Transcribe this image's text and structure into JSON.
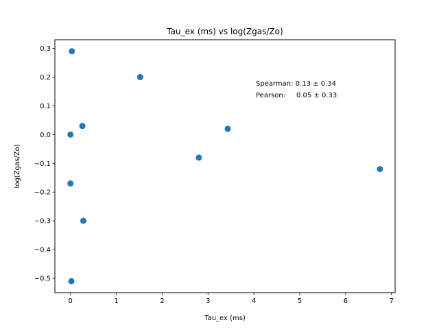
{
  "chart_data": {
    "type": "scatter",
    "title": "Tau_ex (ms) vs log(Zgas/Zo)",
    "xlabel": "Tau_ex (ms)",
    "ylabel": "log(Zgas/Zo)",
    "xlim": [
      -0.34,
      7.08
    ],
    "ylim": [
      -0.55,
      0.33
    ],
    "x_ticks": [
      0,
      1,
      2,
      3,
      4,
      5,
      6,
      7
    ],
    "y_ticks": [
      -0.5,
      -0.4,
      -0.3,
      -0.2,
      -0.1,
      0.0,
      0.1,
      0.2,
      0.3
    ],
    "x_tick_labels": [
      "0",
      "1",
      "2",
      "3",
      "4",
      "5",
      "6",
      "7"
    ],
    "y_tick_labels": [
      "−0.5",
      "−0.4",
      "−0.3",
      "−0.2",
      "−0.1",
      "0.0",
      "0.1",
      "0.2",
      "0.3"
    ],
    "grid": false,
    "marker_color": "#1f77b4",
    "points": [
      {
        "x": 0.03,
        "y": 0.29
      },
      {
        "x": 1.52,
        "y": 0.2
      },
      {
        "x": 0.26,
        "y": 0.03
      },
      {
        "x": 0.0,
        "y": 0.0
      },
      {
        "x": 3.43,
        "y": 0.02
      },
      {
        "x": 2.8,
        "y": -0.08
      },
      {
        "x": 6.75,
        "y": -0.12
      },
      {
        "x": 0.0,
        "y": -0.17
      },
      {
        "x": 0.28,
        "y": -0.3
      },
      {
        "x": 0.02,
        "y": -0.51
      }
    ],
    "annotations": [
      "Spearman: 0.13 ± 0.34",
      "Pearson:     0.05 ± 0.33"
    ]
  }
}
